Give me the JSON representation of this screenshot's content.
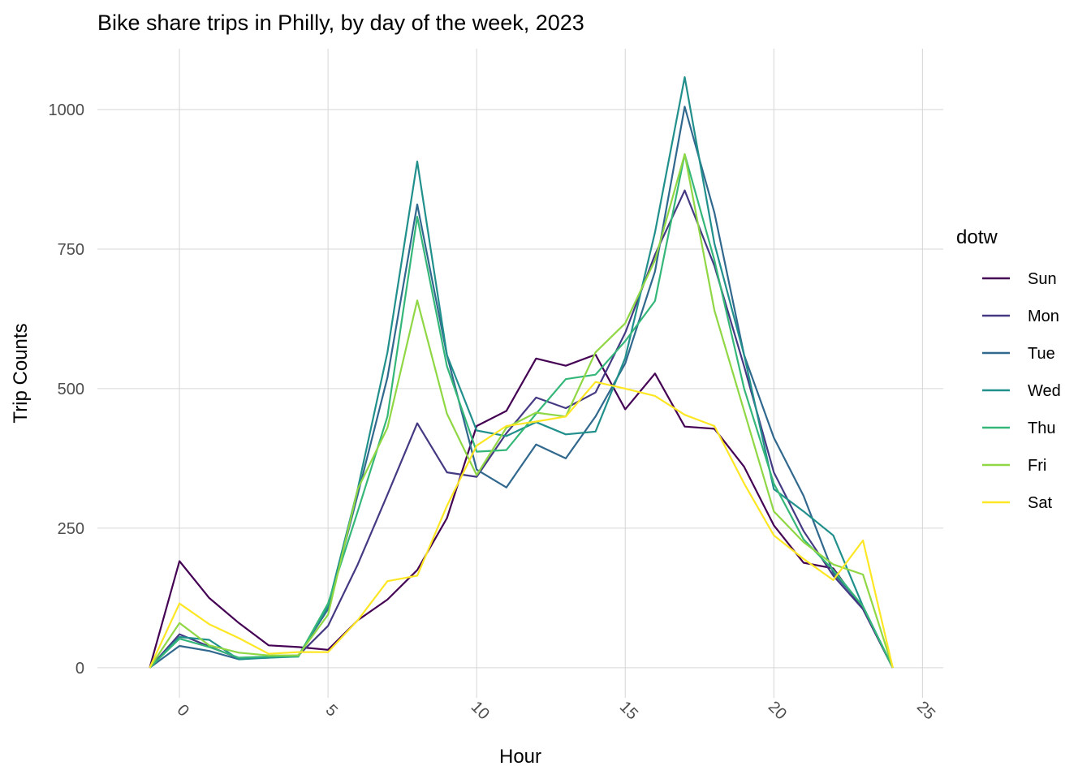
{
  "chart_data": {
    "type": "line",
    "title": "Bike share trips in Philly, by day of the week, 2023",
    "xlabel": "Hour",
    "ylabel": "Trip Counts",
    "xlim": [
      -2.76,
      25.7
    ],
    "ylim": [
      -54,
      1109
    ],
    "xticks": [
      0,
      5,
      10,
      15,
      20,
      25
    ],
    "yticks": [
      0,
      250,
      500,
      750,
      1000
    ],
    "grid": true,
    "legend": {
      "title": "dotw",
      "placement": "right"
    },
    "x": [
      -1,
      0,
      1,
      2,
      3,
      4,
      5,
      6,
      7,
      8,
      9,
      10,
      11,
      12,
      13,
      14,
      15,
      16,
      17,
      18,
      19,
      20,
      21,
      22,
      23,
      24
    ],
    "series": [
      {
        "name": "Sun",
        "color": "#440154",
        "values": [
          0,
          191,
          125,
          80,
          40,
          37,
          32,
          85,
          122,
          175,
          268,
          433,
          460,
          554,
          541,
          561,
          463,
          527,
          432,
          428,
          360,
          255,
          188,
          178,
          105,
          0
        ]
      },
      {
        "name": "Mon",
        "color": "#443A83",
        "values": [
          0,
          60,
          38,
          17,
          18,
          22,
          75,
          185,
          310,
          438,
          350,
          342,
          420,
          484,
          465,
          493,
          600,
          740,
          855,
          720,
          540,
          350,
          245,
          165,
          105,
          0
        ]
      },
      {
        "name": "Tue",
        "color": "#31688E",
        "values": [
          0,
          39,
          30,
          15,
          20,
          22,
          105,
          310,
          520,
          830,
          560,
          355,
          323,
          400,
          375,
          450,
          545,
          710,
          1005,
          815,
          560,
          412,
          308,
          170,
          110,
          0
        ]
      },
      {
        "name": "Wed",
        "color": "#21908C",
        "values": [
          0,
          55,
          50,
          15,
          18,
          20,
          110,
          320,
          565,
          907,
          560,
          425,
          415,
          440,
          418,
          423,
          555,
          780,
          1058,
          760,
          560,
          320,
          280,
          237,
          110,
          0
        ]
      },
      {
        "name": "Thu",
        "color": "#35B779",
        "values": [
          0,
          52,
          37,
          18,
          20,
          20,
          115,
          280,
          450,
          808,
          540,
          387,
          390,
          455,
          517,
          525,
          585,
          657,
          920,
          730,
          500,
          330,
          230,
          175,
          110,
          0
        ]
      },
      {
        "name": "Fri",
        "color": "#8FD744",
        "values": [
          0,
          80,
          40,
          27,
          22,
          22,
          95,
          320,
          430,
          658,
          455,
          345,
          430,
          457,
          450,
          565,
          617,
          730,
          920,
          640,
          460,
          280,
          225,
          185,
          167,
          0
        ]
      },
      {
        "name": "Sat",
        "color": "#FDE725",
        "values": [
          0,
          115,
          78,
          53,
          25,
          28,
          28,
          85,
          155,
          165,
          290,
          398,
          433,
          441,
          450,
          512,
          500,
          487,
          453,
          433,
          330,
          237,
          195,
          157,
          228,
          0
        ]
      }
    ]
  }
}
